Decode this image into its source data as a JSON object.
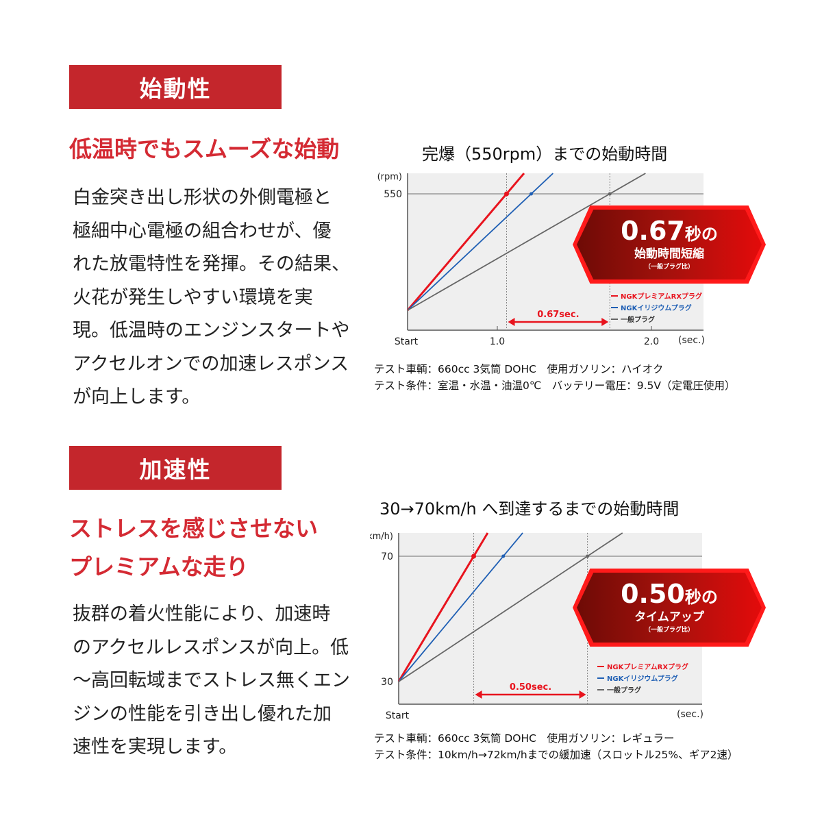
{
  "section1": {
    "heading": "始動性",
    "subheading": "低温時でもスムーズな始動",
    "body_lines": [
      "白金突き出し形状の外側電極と",
      "極細中心電極の組合わせが、優",
      "れた放電特性を発揮。その結果、",
      "火花が発生しやすい環境を実",
      "現。低温時のエンジンスタートや",
      "アクセルオンでの加速レスポンス",
      "が向上します。"
    ],
    "badge": {
      "value": "0.67",
      "unit": "秒の",
      "line2": "始動時間短縮",
      "line3": "（一般プラグ比）"
    },
    "notes": [
      "テスト車輌：660cc 3気筒 DOHC　使用ガソリン：ハイオク",
      "テスト条件：室温・水温・油温0℃　バッテリー電圧：9.5V（定電圧使用）"
    ]
  },
  "section2": {
    "heading": "加速性",
    "subheading_lines": [
      "ストレスを感じさせない",
      "プレミアムな走り"
    ],
    "body_lines": [
      "抜群の着火性能により、加速時",
      "のアクセルレスポンスが向上。低",
      "〜高回転域までストレス無くエン",
      "ジンの性能を引き出し優れた加",
      "速性を実現します。"
    ],
    "badge": {
      "value": "0.50",
      "unit": "秒の",
      "line2": "タイムアップ",
      "line3": "（一般プラグ比）"
    },
    "notes": [
      "テスト車輌：660cc 3気筒 DOHC　使用ガソリン：レギュラー",
      "テスト条件：10km/h→72km/hまでの緩加速（スロットル25%、ギア2速）"
    ]
  },
  "colors": {
    "accent": "#c4262c",
    "red_series": "#e8141e",
    "blue_series": "#1f5fb4",
    "gray_series": "#666666",
    "plot_bg": "#efefef"
  },
  "chart_data": [
    {
      "type": "line",
      "title": "完爆（550rpm）までの始動時間",
      "ylabel": "(rpm)",
      "xlabel": "(sec.)",
      "x_start_label": "Start",
      "x_ticks": [
        "1.0",
        "2.0"
      ],
      "y_ticks": [
        "550"
      ],
      "target_y": 550,
      "grid": false,
      "legend_position": "bottom-right",
      "series": [
        {
          "name": "NGKプレミアムRXプラグ",
          "color": "#e8141e",
          "time_to_target": 1.06
        },
        {
          "name": "NGKイリジウムプラグ",
          "color": "#1f5fb4",
          "time_to_target": 1.22
        },
        {
          "name": "一般プラグ",
          "color": "#666666",
          "time_to_target": 1.73
        }
      ],
      "difference_label": "0.67sec.",
      "difference": 0.67
    },
    {
      "type": "line",
      "title": "30→70km/h へ到達するまでの始動時間",
      "ylabel": "(km/h)",
      "xlabel": "(sec.)",
      "x_start_label": "Start",
      "x_ticks": [],
      "y_ticks": [
        "70",
        "30"
      ],
      "target_y": 70,
      "start_y": 30,
      "grid": false,
      "legend_position": "bottom-right",
      "series": [
        {
          "name": "NGKプレミアムRXプラグ",
          "color": "#e8141e",
          "time_to_target": 0.33
        },
        {
          "name": "NGKイリジウムプラグ",
          "color": "#1f5fb4",
          "time_to_target": 0.46
        },
        {
          "name": "一般プラグ",
          "color": "#666666",
          "time_to_target": 0.83
        }
      ],
      "difference_label": "0.50sec.",
      "difference": 0.5
    }
  ]
}
